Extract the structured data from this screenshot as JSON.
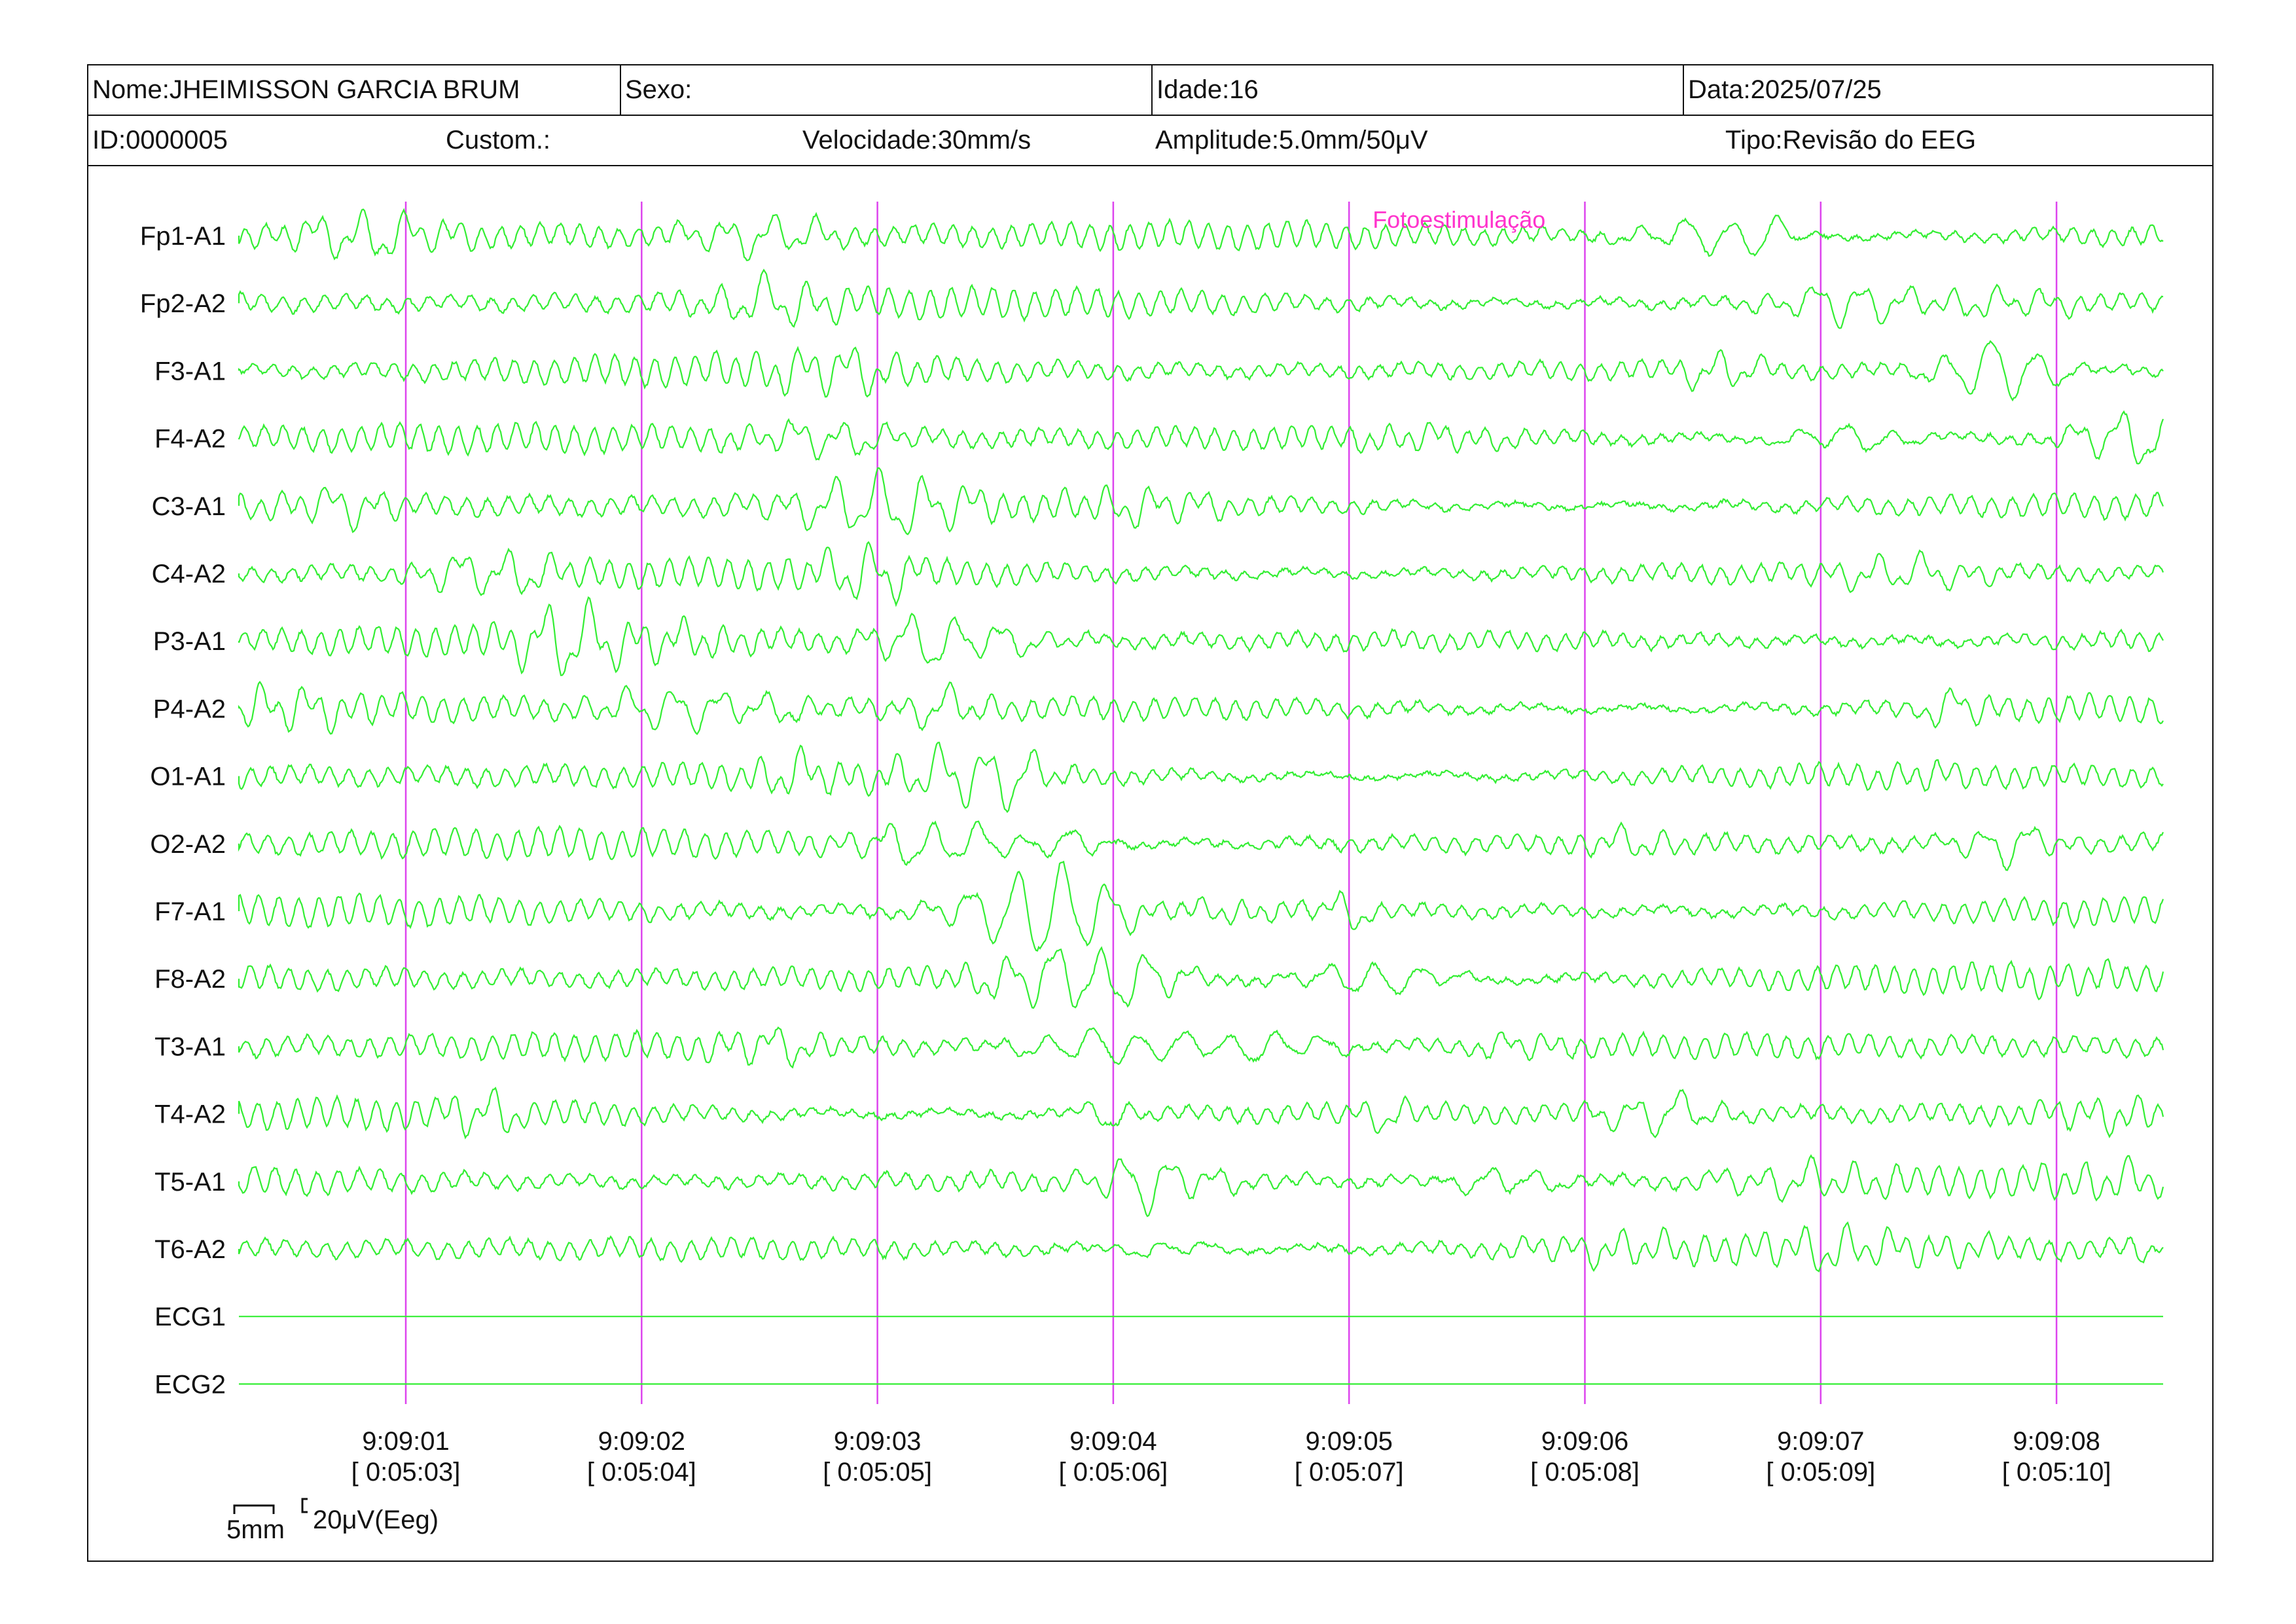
{
  "header": {
    "nome_label": "Nome:",
    "nome_value": "JHEIMISSON GARCIA BRUM",
    "sexo_label": "Sexo:",
    "sexo_value": "",
    "idade_label": "Idade:",
    "idade_value": "16",
    "data_label": "Data:",
    "data_value": "2025/07/25",
    "id_label": "ID:",
    "id_value": "0000005",
    "custom_label": "Custom.:",
    "velocidade_label": "Velocidade:",
    "velocidade_value": "30mm/s",
    "amplitude_label": "Amplitude:",
    "amplitude_value": "5.0mm/50μV",
    "tipo_label": "Tipo:",
    "tipo_value": "Revisão do EEG"
  },
  "colors": {
    "trace": "#33ee33",
    "marker": "#dd44ee",
    "event": "#ff33cc",
    "text": "#111111"
  },
  "channels": [
    {
      "name": "Fp1-A1",
      "type": "eeg"
    },
    {
      "name": "Fp2-A2",
      "type": "eeg"
    },
    {
      "name": "F3-A1",
      "type": "eeg"
    },
    {
      "name": "F4-A2",
      "type": "eeg"
    },
    {
      "name": "C3-A1",
      "type": "eeg"
    },
    {
      "name": "C4-A2",
      "type": "eeg"
    },
    {
      "name": "P3-A1",
      "type": "eeg"
    },
    {
      "name": "P4-A2",
      "type": "eeg"
    },
    {
      "name": "O1-A1",
      "type": "eeg"
    },
    {
      "name": "O2-A2",
      "type": "eeg"
    },
    {
      "name": "F7-A1",
      "type": "eeg"
    },
    {
      "name": "F8-A2",
      "type": "eeg"
    },
    {
      "name": "T3-A1",
      "type": "eeg"
    },
    {
      "name": "T4-A2",
      "type": "eeg"
    },
    {
      "name": "T5-A1",
      "type": "eeg"
    },
    {
      "name": "T6-A2",
      "type": "eeg"
    },
    {
      "name": "ECG1",
      "type": "flat"
    },
    {
      "name": "ECG2",
      "type": "flat"
    }
  ],
  "time_markers": [
    {
      "clock": "9:09:01",
      "elapsed": "[ 0:05:03]"
    },
    {
      "clock": "9:09:02",
      "elapsed": "[ 0:05:04]"
    },
    {
      "clock": "9:09:03",
      "elapsed": "[ 0:05:05]"
    },
    {
      "clock": "9:09:04",
      "elapsed": "[ 0:05:06]"
    },
    {
      "clock": "9:09:05",
      "elapsed": "[ 0:05:07]"
    },
    {
      "clock": "9:09:06",
      "elapsed": "[ 0:05:08]"
    },
    {
      "clock": "9:09:07",
      "elapsed": "[ 0:05:09]"
    },
    {
      "clock": "9:09:08",
      "elapsed": "[ 0:05:10]"
    }
  ],
  "event": {
    "label": "Fotoestimulação",
    "at_marker": "9:09:05"
  },
  "scale": {
    "time_label": "5mm",
    "amp_label": "20μV(Eeg)"
  }
}
